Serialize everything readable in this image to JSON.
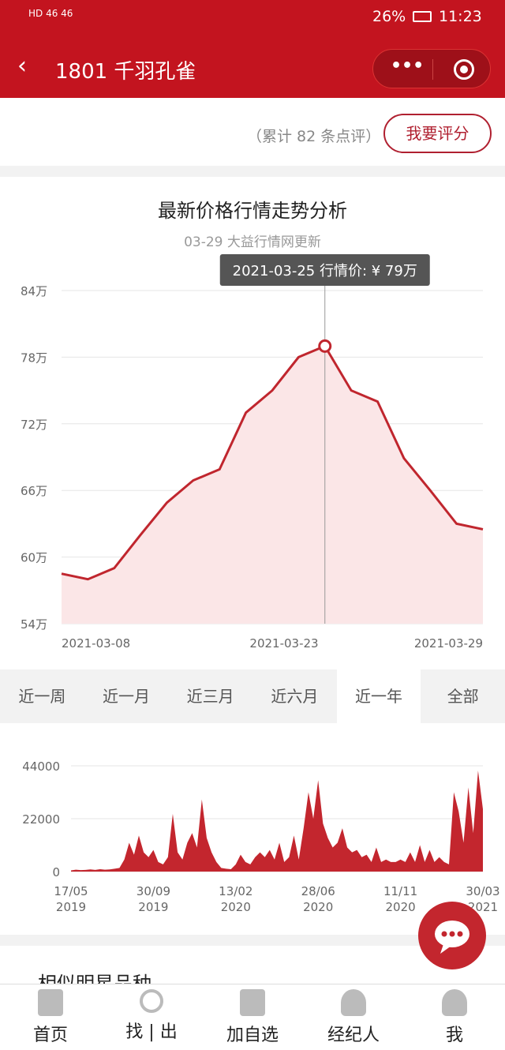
{
  "status": {
    "left": "HD 46 46",
    "battery": "26%",
    "time": "11:23"
  },
  "header": {
    "back": "‹",
    "title": "1801 千羽孔雀",
    "more": "•••"
  },
  "review": {
    "count": "（累计 82 条点评）",
    "button": "我要评分"
  },
  "chart_data": [
    {
      "type": "area",
      "title": "最新价格行情走势分析",
      "subtitle": "03-29 大益行情网更新",
      "yticks": [
        "84万",
        "78万",
        "72万",
        "66万",
        "60万",
        "54万"
      ],
      "ylim": [
        54,
        84
      ],
      "xticks": [
        "2021-03-08",
        "2021-03-23",
        "2021-03-29"
      ],
      "values": [
        58.5,
        58.0,
        59.0,
        62.0,
        64.9,
        66.9,
        67.9,
        73.0,
        75.0,
        78.0,
        79.0,
        75.0,
        74.0,
        68.9,
        66.0,
        63.0,
        62.5
      ],
      "tooltip": "2021-03-25 行情价: ¥ 79万",
      "highlight_index": 10,
      "color": "#c0262e",
      "fill": "#fbe6e7"
    },
    {
      "type": "area",
      "yticks": [
        "44000",
        "22000",
        "0"
      ],
      "ylim": [
        0,
        44000
      ],
      "xticks": [
        [
          "17/05",
          "2019"
        ],
        [
          "30/09",
          "2019"
        ],
        [
          "13/02",
          "2020"
        ],
        [
          "28/06",
          "2020"
        ],
        [
          "11/11",
          "2020"
        ],
        [
          "30/03",
          "2021"
        ]
      ],
      "values": [
        500,
        800,
        600,
        700,
        900,
        700,
        1000,
        800,
        900,
        1200,
        1500,
        5000,
        12000,
        7000,
        15000,
        8000,
        6000,
        9000,
        4000,
        3000,
        6000,
        24000,
        8000,
        5000,
        12000,
        16000,
        10000,
        30000,
        14000,
        8000,
        4000,
        1500,
        1200,
        1000,
        3000,
        7000,
        4000,
        3000,
        6000,
        8000,
        6000,
        9000,
        5000,
        12000,
        4000,
        6000,
        15000,
        5000,
        18000,
        33000,
        22000,
        38000,
        20000,
        14000,
        10000,
        12000,
        18000,
        10000,
        8000,
        9000,
        6000,
        7000,
        4000,
        10000,
        4000,
        5000,
        4000,
        4000,
        5000,
        4000,
        8000,
        4000,
        11000,
        4000,
        9000,
        4000,
        6000,
        4000,
        3000,
        33000,
        25000,
        12000,
        35000,
        16000,
        42000,
        26000
      ],
      "color": "#c3262e"
    }
  ],
  "tabs": [
    "近一周",
    "近一月",
    "近三月",
    "近六月",
    "近一年",
    "全部"
  ],
  "active_tab": 4,
  "section_title": "相似明星品种",
  "nav": [
    "首页",
    "找 | 出",
    "加自选",
    "经纪人",
    "我"
  ]
}
